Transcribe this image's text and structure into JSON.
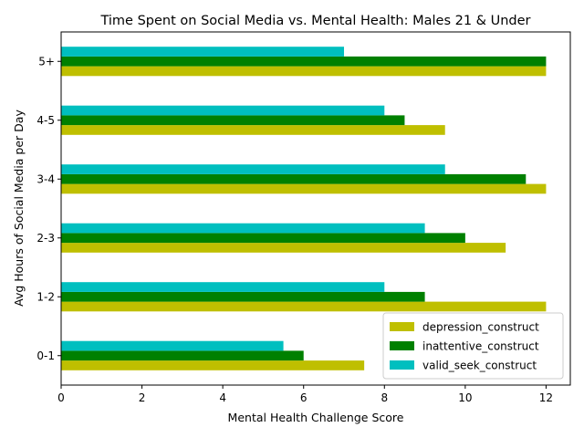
{
  "chart_data": {
    "type": "bar",
    "orientation": "horizontal",
    "title": "Time Spent on Social Media vs. Mental Health: Males 21 & Under",
    "xlabel": "Mental Health Challenge Score",
    "ylabel": "Avg Hours of Social Media per Day",
    "categories": [
      "0-1",
      "1-2",
      "2-3",
      "3-4",
      "4-5",
      "5+"
    ],
    "xlim": [
      0,
      12.6
    ],
    "xticks": [
      0,
      2,
      4,
      6,
      8,
      10,
      12
    ],
    "grid": false,
    "legend_position": "lower-right",
    "series": [
      {
        "name": "depression_construct",
        "color": "#bfbf00",
        "values": [
          7.5,
          12,
          11,
          12,
          9.5,
          12
        ]
      },
      {
        "name": "inattentive_construct",
        "color": "#008000",
        "values": [
          6,
          9,
          10,
          11.5,
          8.5,
          12
        ]
      },
      {
        "name": "valid_seek_construct",
        "color": "#00bfbf",
        "values": [
          5.5,
          8,
          9,
          9.5,
          8,
          7
        ]
      }
    ]
  }
}
